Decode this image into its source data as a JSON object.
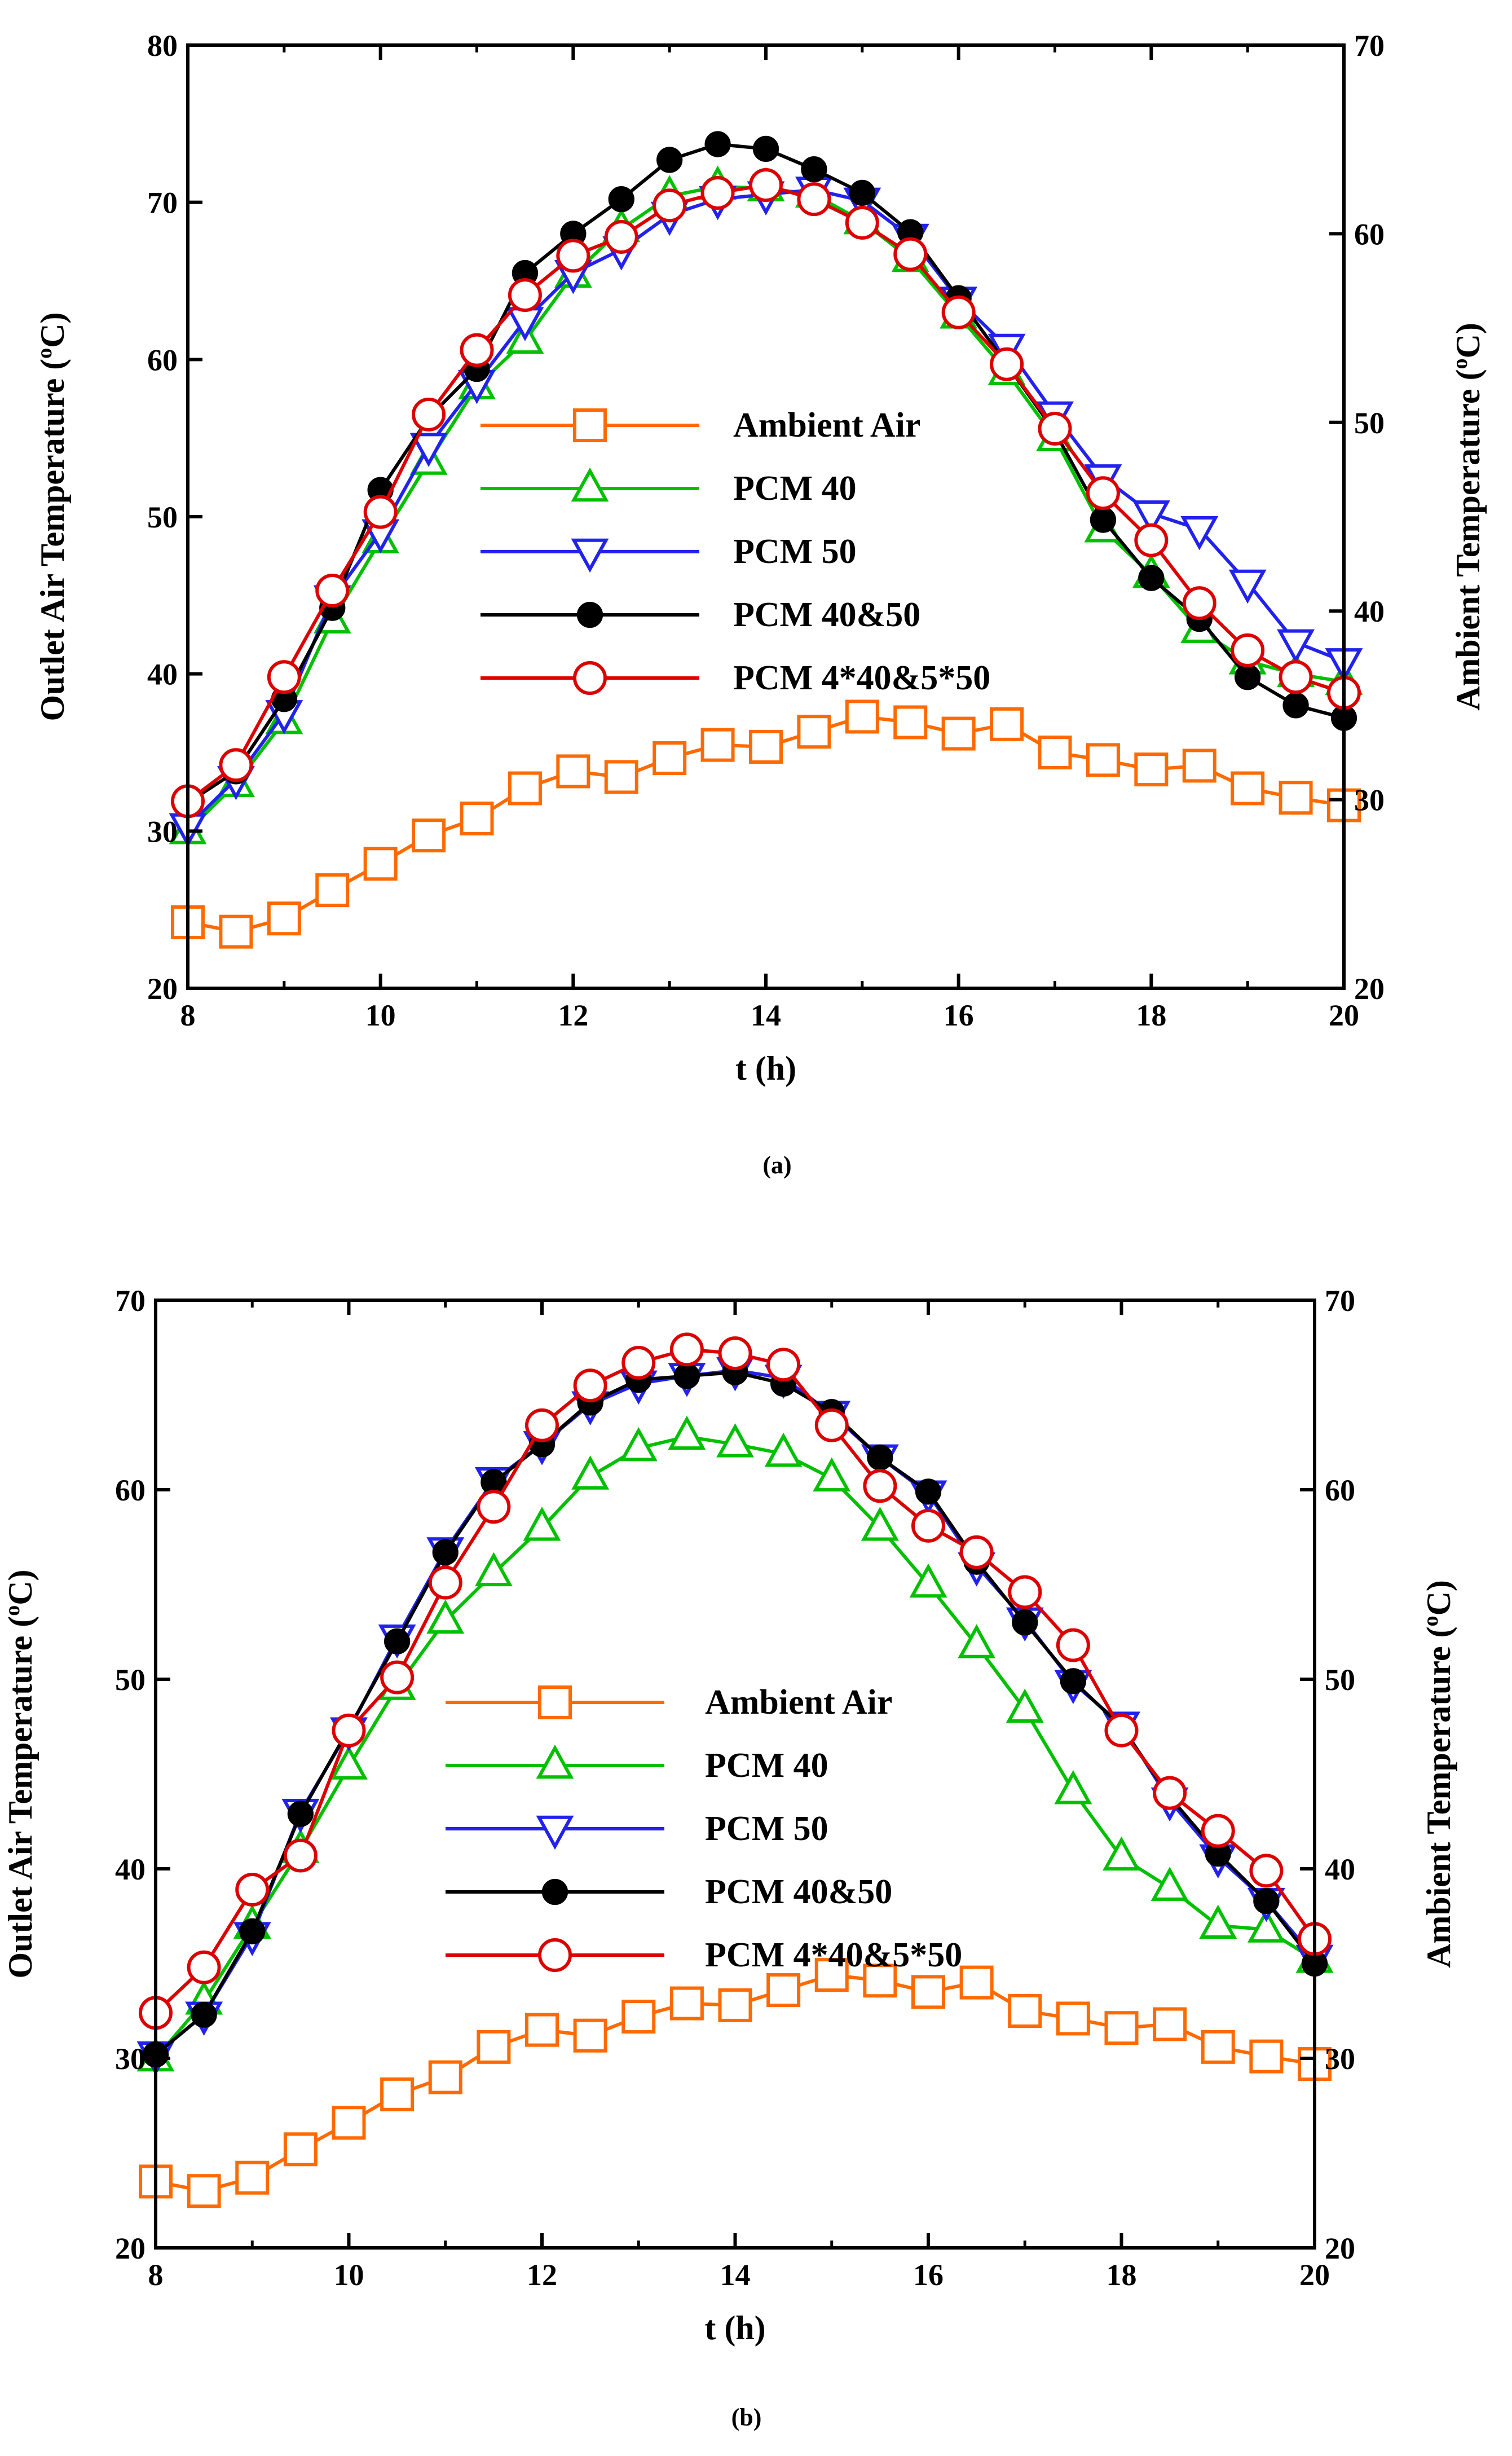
{
  "figure": {
    "background": "#ffffff"
  },
  "chart_data": [
    {
      "type": "line",
      "panel_label": "(a)",
      "xlabel": "t (h)",
      "ylabel_left": "Outlet Air Temperature (oC)",
      "ylabel_right": "Ambient Temperature (oC)",
      "superscript": "o",
      "xlim": [
        8,
        20
      ],
      "ylim_left": [
        20,
        80
      ],
      "ylim_right": [
        20,
        70
      ],
      "xticks": [
        8,
        10,
        12,
        14,
        16,
        18,
        20
      ],
      "yticks_left": [
        20,
        30,
        40,
        50,
        60,
        70,
        80
      ],
      "yticks_right": [
        20,
        30,
        40,
        50,
        60,
        70
      ],
      "x": [
        8,
        8.5,
        9,
        9.5,
        10,
        10.5,
        11,
        11.5,
        12,
        12.5,
        13,
        13.5,
        14,
        14.5,
        15,
        15.5,
        16,
        16.5,
        17,
        17.5,
        18,
        18.5,
        19,
        19.5,
        20
      ],
      "series": [
        {
          "name": "Ambient Air",
          "axis": "right",
          "color": "#ff6a00",
          "marker": "square",
          "values": [
            23.5,
            23.0,
            23.7,
            25.2,
            26.6,
            28.1,
            29.0,
            30.6,
            31.5,
            31.2,
            32.2,
            32.9,
            32.8,
            33.6,
            34.4,
            34.1,
            33.5,
            34.0,
            32.5,
            32.1,
            31.6,
            31.8,
            30.6,
            30.1,
            29.7
          ]
        },
        {
          "name": "PCM 40",
          "axis": "left",
          "color": "#00c000",
          "marker": "triangle-up",
          "values": [
            30.0,
            33.0,
            37.0,
            43.4,
            48.5,
            53.5,
            58.3,
            61.2,
            65.4,
            68.3,
            70.4,
            71.0,
            70.9,
            70.5,
            68.8,
            66.4,
            62.8,
            59.2,
            55.0,
            49.2,
            46.3,
            42.8,
            40.8,
            40.0,
            39.5
          ]
        },
        {
          "name": "PCM 50",
          "axis": "left",
          "color": "#2222ee",
          "marker": "triangle-down",
          "values": [
            30.3,
            33.3,
            37.5,
            44.8,
            49.0,
            54.5,
            58.5,
            62.5,
            65.5,
            67.0,
            69.2,
            70.2,
            70.5,
            70.8,
            70.1,
            67.8,
            63.8,
            60.8,
            56.5,
            52.5,
            50.2,
            49.2,
            45.8,
            42.0,
            40.8
          ]
        },
        {
          "name": "PCM 40&50",
          "axis": "left",
          "color": "#000000",
          "marker": "circle-filled",
          "values": [
            31.8,
            33.8,
            38.4,
            44.2,
            51.7,
            56.3,
            59.4,
            65.5,
            68.0,
            70.2,
            72.7,
            73.7,
            73.4,
            72.1,
            70.6,
            68.1,
            63.9,
            59.7,
            55.4,
            49.8,
            46.1,
            43.5,
            39.8,
            38.0,
            37.2
          ]
        },
        {
          "name": "PCM 4*40&5*50",
          "axis": "left",
          "color": "#dd0000",
          "marker": "circle-open",
          "values": [
            31.9,
            34.2,
            39.8,
            45.3,
            50.3,
            56.5,
            60.6,
            64.1,
            66.6,
            67.8,
            69.8,
            70.6,
            71.1,
            70.2,
            68.7,
            66.7,
            63.0,
            59.7,
            55.6,
            51.5,
            48.5,
            44.5,
            41.5,
            39.8,
            38.8
          ]
        }
      ]
    },
    {
      "type": "line",
      "panel_label": "(b)",
      "xlabel": "t (h)",
      "ylabel_left": "Outlet Air Temperature (oC)",
      "ylabel_right": "Ambient Temperature (oC)",
      "superscript": "o",
      "xlim": [
        8,
        20
      ],
      "ylim_left": [
        20,
        70
      ],
      "ylim_right": [
        20,
        70
      ],
      "xticks": [
        8,
        10,
        12,
        14,
        16,
        18,
        20
      ],
      "yticks_left": [
        20,
        30,
        40,
        50,
        60,
        70
      ],
      "yticks_right": [
        20,
        30,
        40,
        50,
        60,
        70
      ],
      "x": [
        8,
        8.5,
        9,
        9.5,
        10,
        10.5,
        11,
        11.5,
        12,
        12.5,
        13,
        13.5,
        14,
        14.5,
        15,
        15.5,
        16,
        16.5,
        17,
        17.5,
        18,
        18.5,
        19,
        19.5,
        20
      ],
      "series": [
        {
          "name": "Ambient Air",
          "axis": "right",
          "color": "#ff6a00",
          "marker": "square",
          "values": [
            23.5,
            23.0,
            23.7,
            25.2,
            26.6,
            28.1,
            29.0,
            30.6,
            31.5,
            31.2,
            32.2,
            32.9,
            32.8,
            33.6,
            34.4,
            34.1,
            33.5,
            34.0,
            32.5,
            32.1,
            31.6,
            31.8,
            30.6,
            30.1,
            29.7
          ]
        },
        {
          "name": "PCM 40",
          "axis": "left",
          "color": "#00c000",
          "marker": "triangle-up",
          "values": [
            30.0,
            33.0,
            37.0,
            41.0,
            45.4,
            49.6,
            53.1,
            55.6,
            58.0,
            60.7,
            62.2,
            62.8,
            62.4,
            61.9,
            60.6,
            58.0,
            55.0,
            51.8,
            48.4,
            44.1,
            40.6,
            39.0,
            37.0,
            36.8,
            35.2
          ]
        },
        {
          "name": "PCM 50",
          "axis": "left",
          "color": "#2222ee",
          "marker": "triangle-down",
          "values": [
            30.2,
            32.3,
            36.5,
            43.0,
            47.3,
            52.2,
            56.8,
            60.5,
            62.4,
            64.5,
            65.6,
            66.0,
            66.3,
            65.9,
            64.0,
            61.7,
            59.8,
            56.0,
            53.1,
            49.8,
            47.6,
            43.6,
            40.6,
            38.3,
            35.3
          ]
        },
        {
          "name": "PCM 40&50",
          "axis": "left",
          "color": "#000000",
          "marker": "circle-filled",
          "values": [
            30.2,
            32.3,
            36.7,
            42.9,
            47.4,
            52.0,
            56.7,
            60.4,
            62.4,
            64.6,
            65.8,
            66.0,
            66.2,
            65.6,
            64.1,
            61.7,
            59.9,
            56.2,
            53.0,
            49.9,
            47.5,
            43.8,
            40.8,
            38.3,
            35.0
          ]
        },
        {
          "name": "PCM 4*40&5*50",
          "axis": "left",
          "color": "#dd0000",
          "marker": "circle-open",
          "values": [
            32.4,
            34.8,
            38.9,
            40.7,
            47.3,
            50.1,
            55.1,
            59.1,
            63.4,
            65.5,
            66.7,
            67.4,
            67.2,
            66.6,
            63.4,
            60.2,
            58.1,
            56.7,
            54.6,
            51.8,
            47.3,
            44.0,
            42.0,
            39.9,
            36.3
          ]
        }
      ]
    }
  ]
}
